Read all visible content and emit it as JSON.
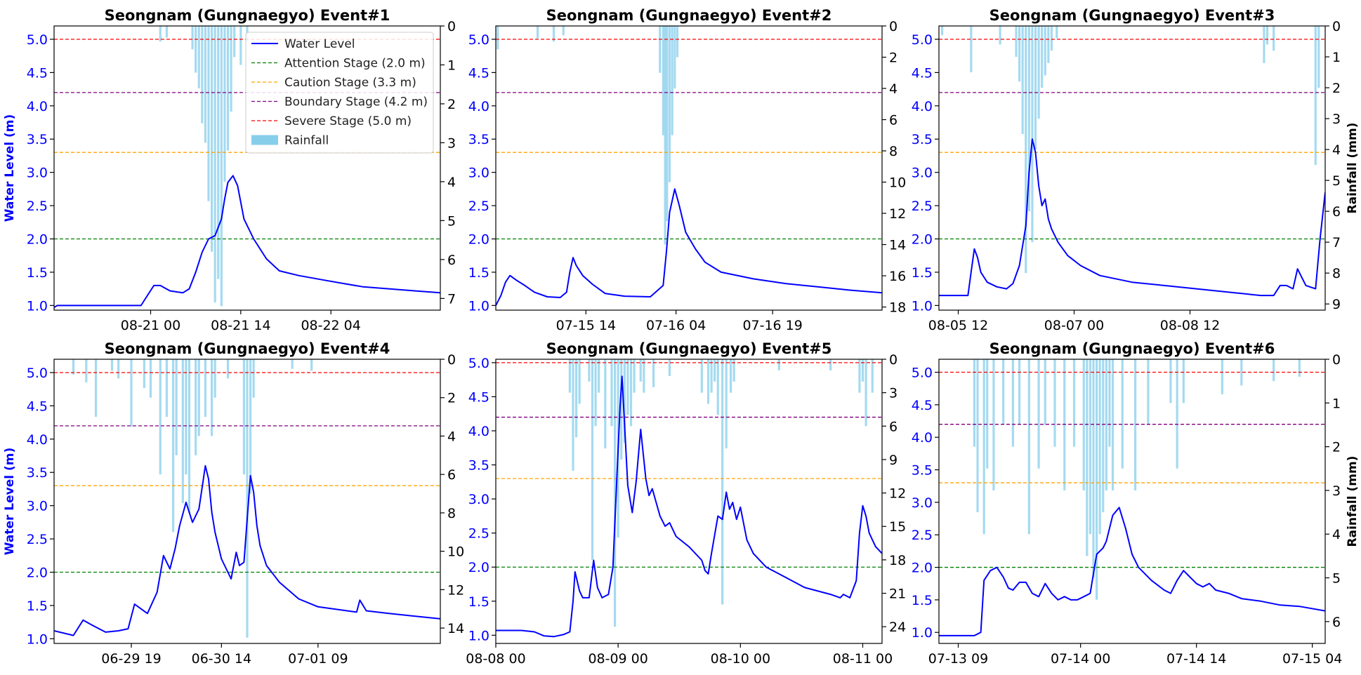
{
  "figure": {
    "colors": {
      "water_level": "#0000ff",
      "rainfall": "#87ceeb",
      "attention": "#008000",
      "caution": "#ffa500",
      "boundary": "#800080",
      "severe": "#ff0000",
      "axis_left_text": "#0000ff",
      "axis_right_text": "#000000"
    },
    "legend": {
      "water_level": "Water Level",
      "attention": "Attention Stage (2.0 m)",
      "caution": "Caution Stage (3.3 m)",
      "boundary": "Boundary Stage (4.2 m)",
      "severe": "Severe Stage (5.0 m)",
      "rainfall": "Rainfall"
    },
    "ylabel_left": "Water Level (m)",
    "ylabel_right": "Rainfall (mm)"
  },
  "chart_data": [
    {
      "type": "line",
      "title": "Seongnam (Gungnaegyo) Event#1",
      "xlim": [
        0,
        60
      ],
      "x_ticks": [
        {
          "x": 15,
          "label": "08-21 00"
        },
        {
          "x": 29,
          "label": "08-21 14"
        },
        {
          "x": 43,
          "label": "08-22 04"
        }
      ],
      "ylim": [
        0.93,
        5.2
      ],
      "y_ticks": [
        1.0,
        1.5,
        2.0,
        2.5,
        3.0,
        3.5,
        4.0,
        4.5,
        5.0
      ],
      "y2lim": [
        7.3,
        0
      ],
      "y2_ticks": [
        0,
        1,
        2,
        3,
        4,
        5,
        6,
        7
      ],
      "thresholds": {
        "attention": 2.0,
        "caution": 3.3,
        "boundary": 4.2,
        "severe": 5.0
      },
      "show_left_label": true,
      "show_right_label": false,
      "show_legend": true,
      "water_level": {
        "x": [
          0,
          0.5,
          1,
          10,
          13.5,
          14.5,
          15.5,
          16.5,
          18,
          20,
          21,
          22,
          23,
          24,
          25,
          26,
          26.5,
          27,
          27.8,
          28.5,
          29.5,
          31,
          33,
          35,
          38,
          42,
          45,
          48,
          52,
          56,
          60
        ],
        "y": [
          0.97,
          1.0,
          1.0,
          1.0,
          1.0,
          1.15,
          1.3,
          1.3,
          1.22,
          1.19,
          1.25,
          1.5,
          1.8,
          2.0,
          2.05,
          2.3,
          2.6,
          2.85,
          2.95,
          2.8,
          2.3,
          2.0,
          1.7,
          1.52,
          1.45,
          1.38,
          1.33,
          1.28,
          1.25,
          1.22,
          1.19
        ]
      },
      "rainfall": {
        "x": [
          16.5,
          17.5,
          21.5,
          22,
          22.5,
          23,
          23.5,
          24,
          24.5,
          25,
          25.5,
          26,
          26.5,
          27,
          27.5,
          28,
          29,
          30
        ],
        "y": [
          0.4,
          0.3,
          0.6,
          1.2,
          1.6,
          2.5,
          3.0,
          4.5,
          5.8,
          7.1,
          6.5,
          7.2,
          4.0,
          3.2,
          2.2,
          0.8,
          1.0,
          0.4
        ]
      }
    },
    {
      "type": "line",
      "title": "Seongnam (Gungnaegyo) Event#2",
      "xlim": [
        0,
        60
      ],
      "x_ticks": [
        {
          "x": 14,
          "label": "07-15 14"
        },
        {
          "x": 28,
          "label": "07-16 04"
        },
        {
          "x": 43,
          "label": "07-16 19"
        }
      ],
      "ylim": [
        0.93,
        5.2
      ],
      "y_ticks": [
        1.0,
        1.5,
        2.0,
        2.5,
        3.0,
        3.5,
        4.0,
        4.5,
        5.0
      ],
      "y2lim": [
        18.2,
        0
      ],
      "y2_ticks": [
        0,
        2,
        4,
        6,
        8,
        10,
        12,
        14,
        16,
        18
      ],
      "thresholds": {
        "attention": 2.0,
        "caution": 3.3,
        "boundary": 4.2,
        "severe": 5.0
      },
      "show_left_label": false,
      "show_right_label": false,
      "show_legend": false,
      "water_level": {
        "x": [
          0,
          0.8,
          1.5,
          2.2,
          3.2,
          4.5,
          6,
          8,
          10,
          11,
          11.5,
          12,
          12.5,
          13.5,
          15,
          17,
          20,
          24,
          26,
          26.5,
          27,
          27.8,
          28.5,
          29.5,
          31,
          32.5,
          35,
          40,
          45,
          50,
          55,
          60
        ],
        "y": [
          1.0,
          1.15,
          1.35,
          1.45,
          1.38,
          1.3,
          1.2,
          1.13,
          1.12,
          1.2,
          1.5,
          1.72,
          1.6,
          1.45,
          1.32,
          1.18,
          1.14,
          1.13,
          1.3,
          1.8,
          2.4,
          2.75,
          2.5,
          2.1,
          1.85,
          1.65,
          1.5,
          1.4,
          1.33,
          1.28,
          1.23,
          1.19
        ]
      },
      "rainfall": {
        "x": [
          0.3,
          6.5,
          9,
          10.5,
          25.5,
          26,
          26.3,
          26.6,
          27,
          27.4,
          27.8,
          28.2
        ],
        "y": [
          1.5,
          0.8,
          1.0,
          0.6,
          3.0,
          7.0,
          14.0,
          12.5,
          10.0,
          7.0,
          4.0,
          2.0
        ]
      }
    },
    {
      "type": "line",
      "title": "Seongnam (Gungnaegyo) Event#3",
      "xlim": [
        0,
        60
      ],
      "x_ticks": [
        {
          "x": 3,
          "label": "08-05 12"
        },
        {
          "x": 21,
          "label": "08-07 00"
        },
        {
          "x": 39,
          "label": "08-08 12"
        }
      ],
      "ylim": [
        0.93,
        5.2
      ],
      "y_ticks": [
        1.0,
        1.5,
        2.0,
        2.5,
        3.0,
        3.5,
        4.0,
        4.5,
        5.0
      ],
      "y2lim": [
        9.2,
        0
      ],
      "y2_ticks": [
        0,
        1,
        2,
        3,
        4,
        5,
        6,
        7,
        8,
        9
      ],
      "thresholds": {
        "attention": 2.0,
        "caution": 3.3,
        "boundary": 4.2,
        "severe": 5.0
      },
      "show_left_label": false,
      "show_right_label": true,
      "show_legend": false,
      "water_level": {
        "x": [
          0,
          4.5,
          5,
          5.5,
          6,
          6.5,
          7.5,
          9,
          10.5,
          11.5,
          12.5,
          13.5,
          14,
          14.5,
          15,
          15.5,
          16,
          16.5,
          17,
          17.5,
          18.5,
          20,
          22,
          25,
          30,
          35,
          40,
          45,
          50,
          52,
          53,
          54,
          55,
          55.7,
          57,
          58.5,
          59.2,
          60
        ],
        "y": [
          1.15,
          1.15,
          1.5,
          1.85,
          1.72,
          1.5,
          1.35,
          1.28,
          1.25,
          1.33,
          1.6,
          2.2,
          3.0,
          3.5,
          3.3,
          2.8,
          2.5,
          2.6,
          2.3,
          2.15,
          1.95,
          1.75,
          1.6,
          1.45,
          1.35,
          1.3,
          1.25,
          1.2,
          1.15,
          1.15,
          1.3,
          1.3,
          1.25,
          1.55,
          1.3,
          1.25,
          2.0,
          2.7
        ]
      },
      "rainfall": {
        "x": [
          0.5,
          5,
          9.5,
          12,
          12.5,
          13,
          13.5,
          14,
          14.5,
          15,
          15.5,
          16,
          16.5,
          17,
          17.5,
          18.3,
          50.5,
          51,
          52,
          58.5,
          59
        ],
        "y": [
          0.3,
          1.5,
          0.6,
          1.0,
          1.8,
          3.5,
          8.0,
          6.0,
          7.0,
          4.0,
          3.0,
          2.0,
          1.6,
          1.2,
          0.8,
          0.4,
          1.2,
          0.6,
          0.8,
          4.5,
          2.0
        ]
      }
    },
    {
      "type": "line",
      "title": "Seongnam (Gungnaegyo) Event#4",
      "xlim": [
        0,
        60
      ],
      "x_ticks": [
        {
          "x": 12,
          "label": "06-29 19"
        },
        {
          "x": 26,
          "label": "06-30 14"
        },
        {
          "x": 41,
          "label": "07-01 09"
        }
      ],
      "ylim": [
        0.93,
        5.2
      ],
      "y_ticks": [
        1.0,
        1.5,
        2.0,
        2.5,
        3.0,
        3.5,
        4.0,
        4.5,
        5.0
      ],
      "y2lim": [
        14.8,
        0
      ],
      "y2_ticks": [
        0,
        2,
        4,
        6,
        8,
        10,
        12,
        14
      ],
      "thresholds": {
        "attention": 2.0,
        "caution": 3.3,
        "boundary": 4.2,
        "severe": 5.0
      },
      "show_left_label": true,
      "show_right_label": false,
      "show_legend": false,
      "water_level": {
        "x": [
          0,
          3,
          4.5,
          6,
          8,
          10,
          11.5,
          12.5,
          13.5,
          14.5,
          16,
          17,
          18,
          18.8,
          19.5,
          20.5,
          21.5,
          22.5,
          23.5,
          24,
          24.5,
          25,
          26,
          27.5,
          28.3,
          28.8,
          29.5,
          30.5,
          31,
          31.5,
          32,
          33,
          35,
          38,
          41,
          47,
          47.5,
          48.5,
          52,
          56,
          60
        ],
        "y": [
          1.12,
          1.05,
          1.28,
          1.2,
          1.1,
          1.12,
          1.15,
          1.52,
          1.45,
          1.38,
          1.7,
          2.25,
          2.05,
          2.35,
          2.7,
          3.05,
          2.75,
          2.95,
          3.6,
          3.4,
          2.9,
          2.6,
          2.2,
          1.9,
          2.3,
          2.1,
          2.15,
          3.45,
          3.2,
          2.7,
          2.4,
          2.1,
          1.85,
          1.6,
          1.48,
          1.4,
          1.58,
          1.42,
          1.38,
          1.34,
          1.3
        ]
      },
      "rainfall": {
        "x": [
          3,
          5,
          6.5,
          9,
          10,
          12,
          14,
          15,
          16.5,
          17.5,
          18.5,
          19,
          20,
          20.5,
          21,
          22,
          22.5,
          23.5,
          24.5,
          25,
          27,
          29.5,
          30,
          30.5,
          31,
          37,
          40
        ],
        "y": [
          0.8,
          1.2,
          3.0,
          0.6,
          1.0,
          3.5,
          1.5,
          2.0,
          6.0,
          3.0,
          9.0,
          5.0,
          7.5,
          6.0,
          8.0,
          5.0,
          4.0,
          3.0,
          4.0,
          2.0,
          1.0,
          6.0,
          14.5,
          7.0,
          2.0,
          0.5,
          0.6
        ]
      }
    },
    {
      "type": "line",
      "title": "Seongnam (Gungnaegyo) Event#5",
      "xlim": [
        0,
        60
      ],
      "x_ticks": [
        {
          "x": 0,
          "label": "08-08 00"
        },
        {
          "x": 19,
          "label": "08-09 00"
        },
        {
          "x": 38,
          "label": "08-10 00"
        },
        {
          "x": 57,
          "label": "08-11 00"
        }
      ],
      "ylim": [
        0.88,
        5.05
      ],
      "y_ticks": [
        1.0,
        1.5,
        2.0,
        2.5,
        3.0,
        3.5,
        4.0,
        4.5,
        5.0
      ],
      "y2lim": [
        25.5,
        0
      ],
      "y2_ticks": [
        0,
        3,
        6,
        9,
        12,
        15,
        18,
        21,
        24
      ],
      "thresholds": {
        "attention": 2.0,
        "caution": 3.3,
        "boundary": 4.2,
        "severe": 5.0
      },
      "show_left_label": false,
      "show_right_label": false,
      "show_legend": false,
      "water_level": {
        "x": [
          0,
          4,
          6,
          7.5,
          9,
          10.5,
          11.5,
          12,
          12.3,
          13,
          13.5,
          14.5,
          15.2,
          15.8,
          16.5,
          17.5,
          18.2,
          18.8,
          19.3,
          19.6,
          20,
          20.5,
          21.2,
          21.8,
          22.5,
          23.3,
          23.8,
          24.3,
          25.5,
          26.3,
          27,
          28,
          30,
          32,
          32.5,
          33,
          33.5,
          34.5,
          35.2,
          35.8,
          36.3,
          36.8,
          37.4,
          38,
          39,
          40,
          42,
          45,
          48,
          52,
          53.5,
          54,
          55,
          56,
          56.5,
          57,
          57.5,
          58,
          59,
          60
        ],
        "y": [
          1.07,
          1.07,
          1.05,
          0.99,
          0.98,
          1.01,
          1.05,
          1.5,
          1.93,
          1.65,
          1.55,
          1.55,
          2.1,
          1.7,
          1.55,
          1.6,
          2.0,
          3.3,
          4.35,
          4.8,
          4.1,
          3.2,
          2.8,
          3.25,
          4.02,
          3.3,
          3.05,
          3.15,
          2.75,
          2.6,
          2.65,
          2.45,
          2.3,
          2.1,
          1.95,
          1.9,
          2.2,
          2.75,
          2.7,
          3.1,
          2.85,
          2.95,
          2.7,
          2.88,
          2.4,
          2.2,
          2.0,
          1.85,
          1.7,
          1.6,
          1.55,
          1.6,
          1.55,
          1.8,
          2.5,
          2.9,
          2.75,
          2.5,
          2.3,
          2.2
        ]
      },
      "rainfall": {
        "x": [
          11.5,
          12,
          12.5,
          13,
          14.5,
          15,
          15.5,
          16,
          17,
          18,
          18.5,
          19,
          19.5,
          20,
          20.5,
          21,
          21.5,
          22.5,
          23,
          24.5,
          27,
          32,
          33,
          33.5,
          34,
          34.5,
          35.2,
          35.8,
          36.5,
          37,
          44,
          52,
          56.5,
          57,
          57.5,
          58.5
        ],
        "y": [
          3.0,
          10.0,
          7.0,
          4.0,
          2.0,
          18.0,
          6.0,
          3.0,
          8.0,
          6.0,
          24.0,
          16.0,
          9.0,
          7.5,
          5.0,
          6.0,
          3.0,
          2.0,
          3.0,
          2.5,
          1.5,
          3.0,
          4.0,
          3.0,
          2.0,
          5.0,
          22.0,
          8.0,
          3.0,
          2.0,
          1.0,
          1.0,
          3.0,
          2.0,
          6.0,
          3.0
        ]
      }
    },
    {
      "type": "line",
      "title": "Seongnam (Gungnaegyo) Event#6",
      "xlim": [
        0,
        60
      ],
      "x_ticks": [
        {
          "x": 3,
          "label": "07-13 09"
        },
        {
          "x": 22,
          "label": "07-14 00"
        },
        {
          "x": 40,
          "label": "07-14 14"
        },
        {
          "x": 58,
          "label": "07-15 04"
        }
      ],
      "ylim": [
        0.83,
        5.2
      ],
      "y_ticks": [
        1.0,
        1.5,
        2.0,
        2.5,
        3.0,
        3.5,
        4.0,
        4.5,
        5.0
      ],
      "y2lim": [
        6.5,
        0
      ],
      "y2_ticks": [
        0,
        1,
        2,
        3,
        4,
        5,
        6
      ],
      "thresholds": {
        "attention": 2.0,
        "caution": 3.3,
        "boundary": 4.2,
        "severe": 5.0
      },
      "show_left_label": false,
      "show_right_label": true,
      "show_legend": false,
      "water_level": {
        "x": [
          0,
          5.5,
          6.5,
          7,
          8,
          9,
          10,
          10.8,
          11.5,
          12.5,
          13.5,
          14.5,
          15.5,
          16.5,
          17.5,
          18.5,
          19.5,
          20.5,
          21.5,
          22.5,
          23.5,
          24.5,
          25.5,
          26,
          27,
          28,
          29,
          30,
          31,
          33,
          35,
          36,
          37,
          38,
          39,
          40,
          41,
          42,
          43,
          45,
          47,
          50,
          53,
          56,
          60
        ],
        "y": [
          0.95,
          0.95,
          1.0,
          1.8,
          1.95,
          2.0,
          1.85,
          1.68,
          1.65,
          1.77,
          1.77,
          1.6,
          1.55,
          1.75,
          1.6,
          1.5,
          1.55,
          1.5,
          1.5,
          1.55,
          1.6,
          2.2,
          2.3,
          2.4,
          2.8,
          2.92,
          2.6,
          2.2,
          2.0,
          1.8,
          1.65,
          1.6,
          1.8,
          1.95,
          1.85,
          1.75,
          1.7,
          1.75,
          1.65,
          1.6,
          1.52,
          1.48,
          1.42,
          1.4,
          1.33
        ]
      },
      "rainfall": {
        "x": [
          5.5,
          6,
          7,
          7.5,
          8.5,
          10,
          11.5,
          12.5,
          14,
          15.5,
          16.5,
          18,
          19.5,
          21,
          22.5,
          23,
          23.5,
          24,
          24.5,
          25,
          25.5,
          26,
          26.5,
          27,
          28.5,
          30.5,
          32.5,
          36,
          37,
          38,
          44,
          47,
          52,
          56
        ],
        "y": [
          2.0,
          3.5,
          4.0,
          2.5,
          3.0,
          1.5,
          2.0,
          1.5,
          4.0,
          2.5,
          1.5,
          2.0,
          3.0,
          2.0,
          3.0,
          4.5,
          4.0,
          5.0,
          5.5,
          4.0,
          3.5,
          3.0,
          2.0,
          3.0,
          2.5,
          3.0,
          1.5,
          1.0,
          2.5,
          1.0,
          0.8,
          0.6,
          0.5,
          0.4
        ]
      }
    }
  ]
}
